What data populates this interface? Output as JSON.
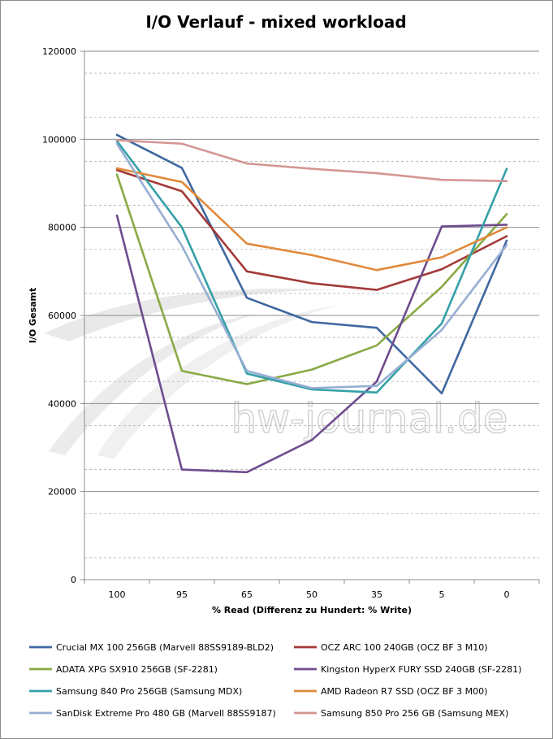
{
  "chart_data": {
    "type": "line",
    "title": "I/O Verlauf - mixed workload",
    "xlabel": "% Read (Differenz zu Hundert: % Write)",
    "ylabel": "I/O Gesamt",
    "categories": [
      "100",
      "95",
      "65",
      "50",
      "35",
      "5",
      "0"
    ],
    "yticks": [
      "0",
      "20000",
      "40000",
      "60000",
      "80000",
      "100000",
      "120000"
    ],
    "ylim": [
      0,
      120000
    ],
    "grid": true,
    "legend_position": "bottom",
    "watermark": "hw-journal.de",
    "series": [
      {
        "name": "Crucial MX 100 256GB (Marvell 88SS9189-BLD2)",
        "color": "#3f68a0",
        "values": [
          101000,
          93500,
          64000,
          58500,
          57200,
          42300,
          77000
        ]
      },
      {
        "name": "OCZ ARC 100 240GB (OCZ BF 3 M10)",
        "color": "#a33a38",
        "values": [
          93000,
          88200,
          70000,
          67300,
          65800,
          70500,
          78000
        ]
      },
      {
        "name": "ADATA XPG SX910 256GB (SF-2281)",
        "color": "#88aa44",
        "values": [
          92000,
          47400,
          44400,
          47700,
          53200,
          66500,
          83000
        ]
      },
      {
        "name": "Kingston HyperX FURY SSD 240GB (SF-2281)",
        "color": "#6e4d8e",
        "values": [
          82700,
          25000,
          24400,
          31700,
          45000,
          80200,
          80600
        ]
      },
      {
        "name": "Samsung 840 Pro 256GB (Samsung MDX)",
        "color": "#34a0a8",
        "values": [
          99600,
          80000,
          46800,
          43200,
          42500,
          58200,
          93300
        ]
      },
      {
        "name": "AMD Radeon R7 SSD (OCZ BF 3 M00)",
        "color": "#e08a3c",
        "values": [
          93400,
          90300,
          76300,
          73700,
          70300,
          73200,
          80000
        ]
      },
      {
        "name": "SanDisk Extreme Pro 480 GB (Marvell 88SS9187)",
        "color": "#97aed3",
        "values": [
          99000,
          75800,
          47400,
          43500,
          44000,
          56700,
          76000
        ]
      },
      {
        "name": "Samsung 850 Pro 256 GB (Samsung MEX)",
        "color": "#d49593",
        "values": [
          99800,
          99000,
          94500,
          93300,
          92300,
          90800,
          90500
        ]
      }
    ]
  }
}
